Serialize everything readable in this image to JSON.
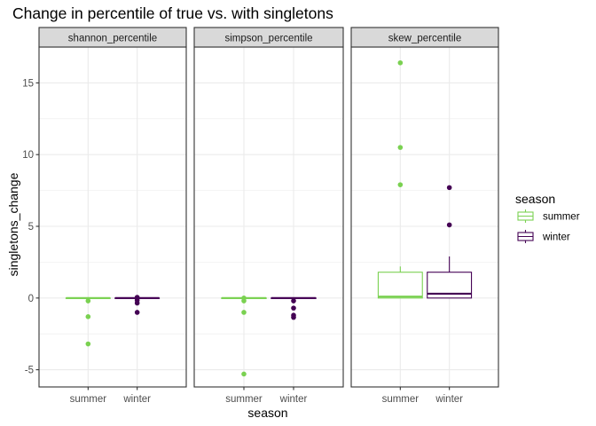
{
  "chart_data": {
    "type": "boxplot",
    "title": "Change in percentile of true vs. with singletons",
    "xlabel": "season",
    "ylabel": "singletons_change",
    "categories": [
      "summer",
      "winter"
    ],
    "ylim": [
      -6.2,
      17.5
    ],
    "yticks": [
      -5,
      0,
      5,
      10,
      15
    ],
    "grid": true,
    "legend": {
      "title": "season",
      "position": "right",
      "entries": [
        {
          "label": "summer",
          "color": "#7ad151"
        },
        {
          "label": "winter",
          "color": "#440154"
        }
      ]
    },
    "facets": [
      {
        "strip": "shannon_percentile",
        "boxes": [
          {
            "category": "summer",
            "q1": 0,
            "median": 0,
            "q3": 0,
            "whisker_low": 0,
            "whisker_high": 0,
            "outliers": [
              -0.2,
              -1.3,
              -3.2
            ]
          },
          {
            "category": "winter",
            "q1": 0,
            "median": 0,
            "q3": 0,
            "whisker_low": 0,
            "whisker_high": 0,
            "outliers": [
              0.05,
              -0.15,
              -0.35,
              -1.0
            ]
          }
        ]
      },
      {
        "strip": "simpson_percentile",
        "boxes": [
          {
            "category": "summer",
            "q1": 0,
            "median": 0,
            "q3": 0,
            "whisker_low": 0,
            "whisker_high": 0,
            "outliers": [
              0.0,
              -0.2,
              -1.0,
              -5.3
            ]
          },
          {
            "category": "winter",
            "q1": 0,
            "median": 0,
            "q3": 0,
            "whisker_low": 0,
            "whisker_high": 0,
            "outliers": [
              -0.2,
              -0.7,
              -1.2,
              -1.35
            ]
          }
        ]
      },
      {
        "strip": "skew_percentile",
        "boxes": [
          {
            "category": "summer",
            "q1": 0.0,
            "median": 0.1,
            "q3": 1.8,
            "whisker_low": 0.0,
            "whisker_high": 2.2,
            "outliers": [
              7.9,
              10.5,
              16.4
            ]
          },
          {
            "category": "winter",
            "q1": 0.0,
            "median": 0.3,
            "q3": 1.8,
            "whisker_low": 0.0,
            "whisker_high": 2.9,
            "outliers": [
              5.1,
              7.7
            ]
          }
        ]
      }
    ]
  },
  "colors": {
    "summer": "#7ad151",
    "winter": "#440154",
    "strip_bg": "#d9d9d9",
    "grid": "#ebebeb",
    "panel_border": "#333333"
  }
}
